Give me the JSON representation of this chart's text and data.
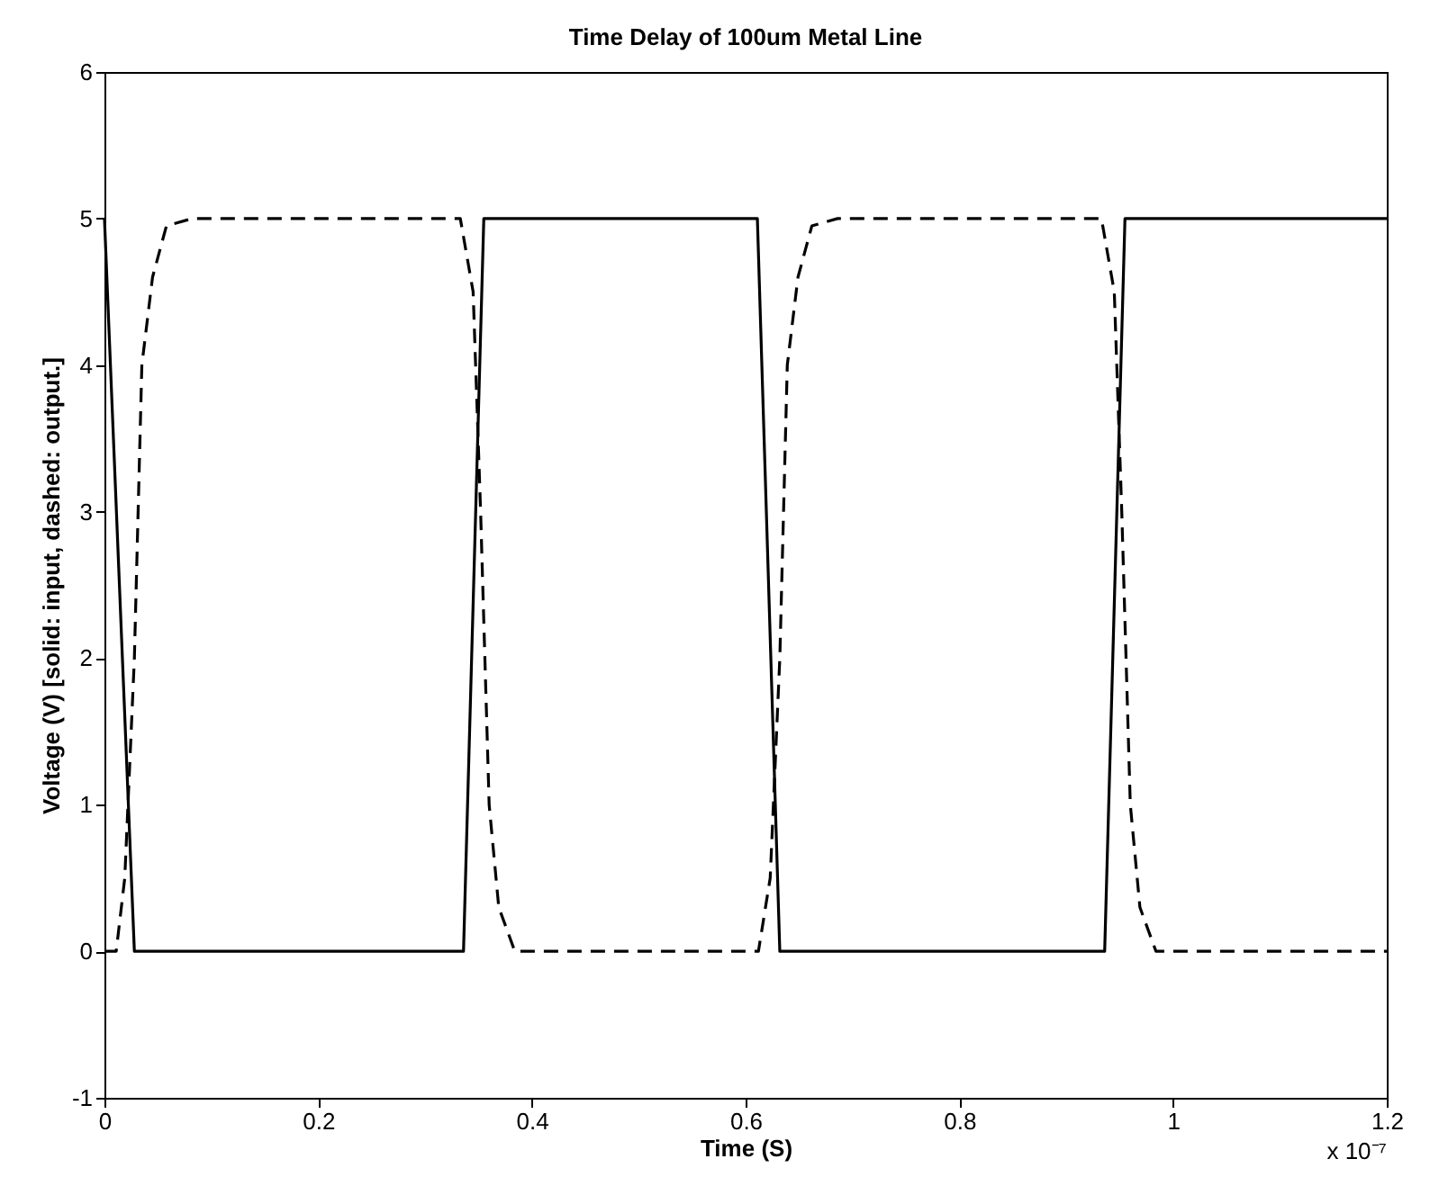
{
  "chart_data": {
    "type": "line",
    "title": "Time Delay of 100um Metal Line",
    "xlabel": "Time (S)",
    "ylabel": "Voltage (V) [solid: input, dashed: output.]",
    "annotations": [
      "x 10⁻⁷"
    ],
    "xlim": [
      0,
      1.2
    ],
    "xticks": [
      0,
      0.2,
      0.4,
      0.6,
      0.8,
      1,
      1.2
    ],
    "ylim": [
      -1,
      6
    ],
    "yticks": [
      -1,
      0,
      1,
      2,
      3,
      4,
      5,
      6
    ],
    "grid": false,
    "marker": "none",
    "series": [
      {
        "color": "#000000",
        "line_style": "solid",
        "x": [
          0,
          0.028,
          0.336,
          0.355,
          0.611,
          0.632,
          0.936,
          0.955,
          1.2
        ],
        "values": [
          5,
          0,
          0,
          5,
          5,
          0,
          0,
          5,
          5
        ]
      },
      {
        "color": "#000000",
        "line_style": "dashed",
        "x": [
          0,
          0.011,
          0.019,
          0.028,
          0.035,
          0.045,
          0.058,
          0.082,
          0.333,
          0.345,
          0.352,
          0.36,
          0.369,
          0.384,
          0.612,
          0.623,
          0.632,
          0.639,
          0.649,
          0.662,
          0.686,
          0.933,
          0.945,
          0.952,
          0.96,
          0.969,
          0.984,
          1.2
        ],
        "values": [
          0,
          0,
          0.5,
          2,
          4,
          4.6,
          4.95,
          5,
          5,
          4.5,
          3,
          1,
          0.3,
          0,
          0,
          0.5,
          2,
          4,
          4.6,
          4.95,
          5,
          5,
          4.5,
          3,
          1,
          0.3,
          0,
          0
        ]
      }
    ]
  }
}
